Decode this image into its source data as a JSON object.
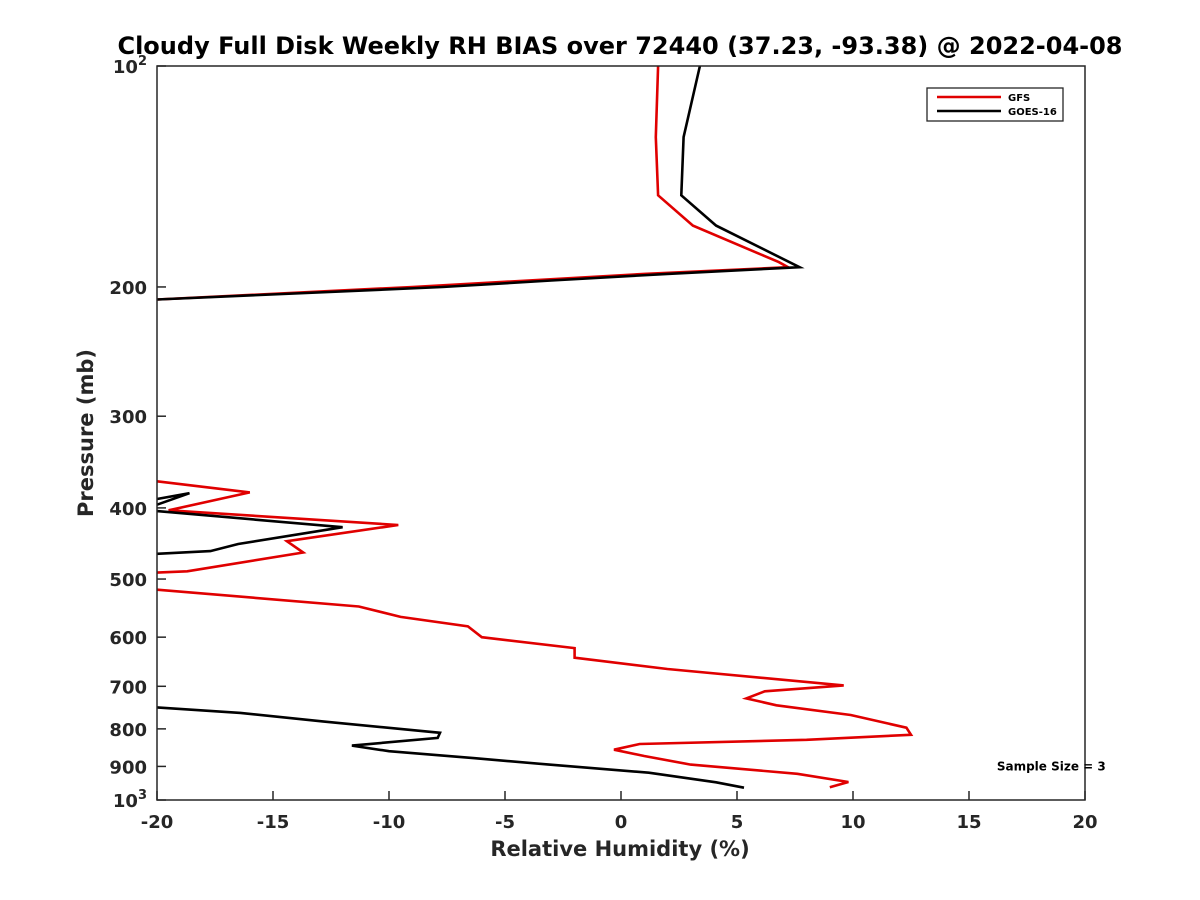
{
  "chart_data": {
    "type": "line",
    "title": "Cloudy Full Disk Weekly RH BIAS over 72440 (37.23, -93.38) @ 2022-04-08",
    "xlabel": "Relative Humidity (%)",
    "ylabel": "Pressure (mb)",
    "xlim": [
      -20,
      20
    ],
    "ylim": [
      100,
      1000
    ],
    "y_scale": "log",
    "y_reversed": true,
    "grid": false,
    "legend_position": "top-right",
    "x_ticks": [
      -20,
      -15,
      -10,
      -5,
      0,
      5,
      10,
      15,
      20
    ],
    "x_tick_labels": [
      "-20",
      "-15",
      "-10",
      "-5",
      "0",
      "5",
      "10",
      "15",
      "20"
    ],
    "y_ticks": [
      {
        "value": 100,
        "base": "10",
        "exp": "2"
      },
      {
        "value": 200,
        "label": "200"
      },
      {
        "value": 300,
        "label": "300"
      },
      {
        "value": 400,
        "label": "400"
      },
      {
        "value": 500,
        "label": "500"
      },
      {
        "value": 600,
        "label": "600"
      },
      {
        "value": 700,
        "label": "700"
      },
      {
        "value": 800,
        "label": "800"
      },
      {
        "value": 900,
        "label": "900"
      },
      {
        "value": 1000,
        "base": "10",
        "exp": "3"
      }
    ],
    "annotations": [
      {
        "text": "Sample Size = 3",
        "x": 16.2,
        "y": 900
      }
    ],
    "series": [
      {
        "name": "GFS",
        "color": "#e00000",
        "segments": [
          [
            [
              1.6,
              100
            ],
            [
              1.5,
              125
            ],
            [
              1.6,
              150
            ],
            [
              3.1,
              165
            ],
            [
              6.8,
              185
            ],
            [
              7.2,
              188
            ],
            [
              1.0,
              192
            ],
            [
              -4.0,
              196
            ],
            [
              -9.0,
              200
            ],
            [
              -20,
              208
            ]
          ],
          [
            [
              -20,
              368
            ],
            [
              -16.0,
              381
            ],
            [
              -19.5,
              403
            ],
            [
              -9.6,
              422
            ],
            [
              -14.4,
              444
            ],
            [
              -13.7,
              460
            ],
            [
              -18.7,
              488
            ],
            [
              -20,
              490
            ]
          ],
          [
            [
              -20,
              517
            ],
            [
              -11.3,
              545
            ],
            [
              -9.5,
              563
            ],
            [
              -6.6,
              580
            ],
            [
              -6.0,
              600
            ],
            [
              -2.0,
              621
            ],
            [
              -2.0,
              640
            ],
            [
              2.0,
              663
            ],
            [
              9.6,
              698
            ],
            [
              6.2,
              711
            ],
            [
              5.4,
              727
            ],
            [
              6.7,
              743
            ],
            [
              9.9,
              766
            ],
            [
              12.3,
              797
            ],
            [
              12.5,
              815
            ],
            [
              8.0,
              828
            ],
            [
              0.8,
              839
            ],
            [
              -0.3,
              854
            ],
            [
              1.0,
              871
            ],
            [
              3.0,
              895
            ],
            [
              7.6,
              921
            ],
            [
              9.8,
              945
            ],
            [
              9.0,
              961
            ]
          ]
        ]
      },
      {
        "name": "GOES-16",
        "color": "#000000",
        "segments": [
          [
            [
              3.4,
              100
            ],
            [
              2.7,
              125
            ],
            [
              2.6,
              150
            ],
            [
              4.1,
              165
            ],
            [
              7.7,
              188
            ],
            [
              2.0,
              192
            ],
            [
              -3.0,
              196
            ],
            [
              -7.7,
              200
            ],
            [
              -20,
              208
            ]
          ],
          [
            [
              -20,
              389
            ],
            [
              -18.6,
              382
            ],
            [
              -20,
              396
            ]
          ],
          [
            [
              -20,
              404
            ],
            [
              -12.0,
              425
            ],
            [
              -16.5,
              448
            ],
            [
              -17.7,
              458
            ],
            [
              -20,
              462
            ]
          ],
          [
            [
              -20,
              748
            ],
            [
              -16.4,
              761
            ],
            [
              -12.8,
              782
            ],
            [
              -7.8,
              810
            ],
            [
              -7.9,
              823
            ],
            [
              -11.6,
              843
            ],
            [
              -10.0,
              858
            ],
            [
              -6.3,
              877
            ],
            [
              -3.1,
              895
            ],
            [
              1.2,
              918
            ],
            [
              4.1,
              946
            ],
            [
              5.3,
              962
            ]
          ]
        ]
      }
    ]
  }
}
